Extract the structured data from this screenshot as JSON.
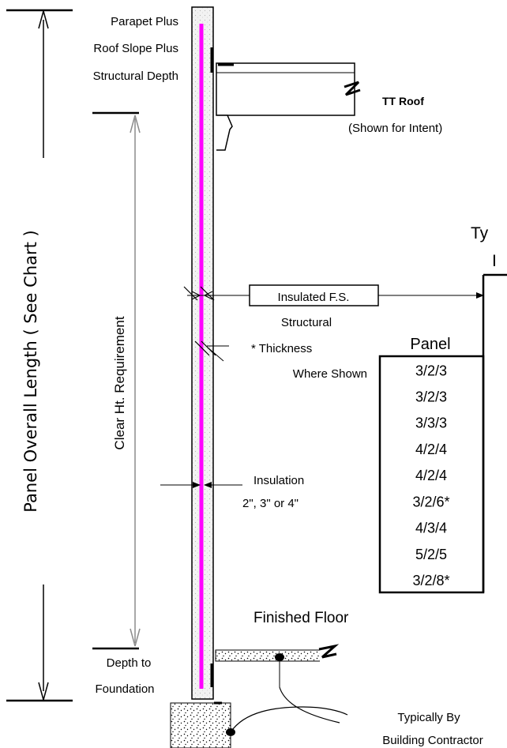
{
  "labels": {
    "parapet": [
      "Parapet Plus",
      "Roof Slope Plus",
      "Structural Depth"
    ],
    "tt_roof": "TT Roof",
    "shown_for_intent": "(Shown for Intent)",
    "typical_partial": [
      "Ty",
      "I"
    ],
    "overall_length": "Panel Overall Length ( See Chart )",
    "clear_height": "Clear Ht. Requirement",
    "insulated_fs": "Insulated F.S.",
    "structural_thickness": [
      "Structural",
      "*  Thickness",
      "Where Shown"
    ],
    "insulation": [
      "Insulation",
      "2\", 3\" or 4\""
    ],
    "finished_floor": "Finished Floor",
    "depth_to_foundation": [
      "Depth to",
      "Foundation"
    ],
    "typically_by": [
      "Typically By",
      "Building Contractor"
    ]
  },
  "panel_table": {
    "header": "Panel",
    "rows": [
      "3/2/3",
      "3/2/3",
      "3/3/3",
      "4/2/4",
      "4/2/4",
      "3/2/6*",
      "4/3/4",
      "5/2/5",
      "3/2/8*"
    ]
  },
  "colors": {
    "insulation_core": "#ff00ff",
    "clear_height_dimension": "#8c8c8c",
    "line": "#000000"
  }
}
